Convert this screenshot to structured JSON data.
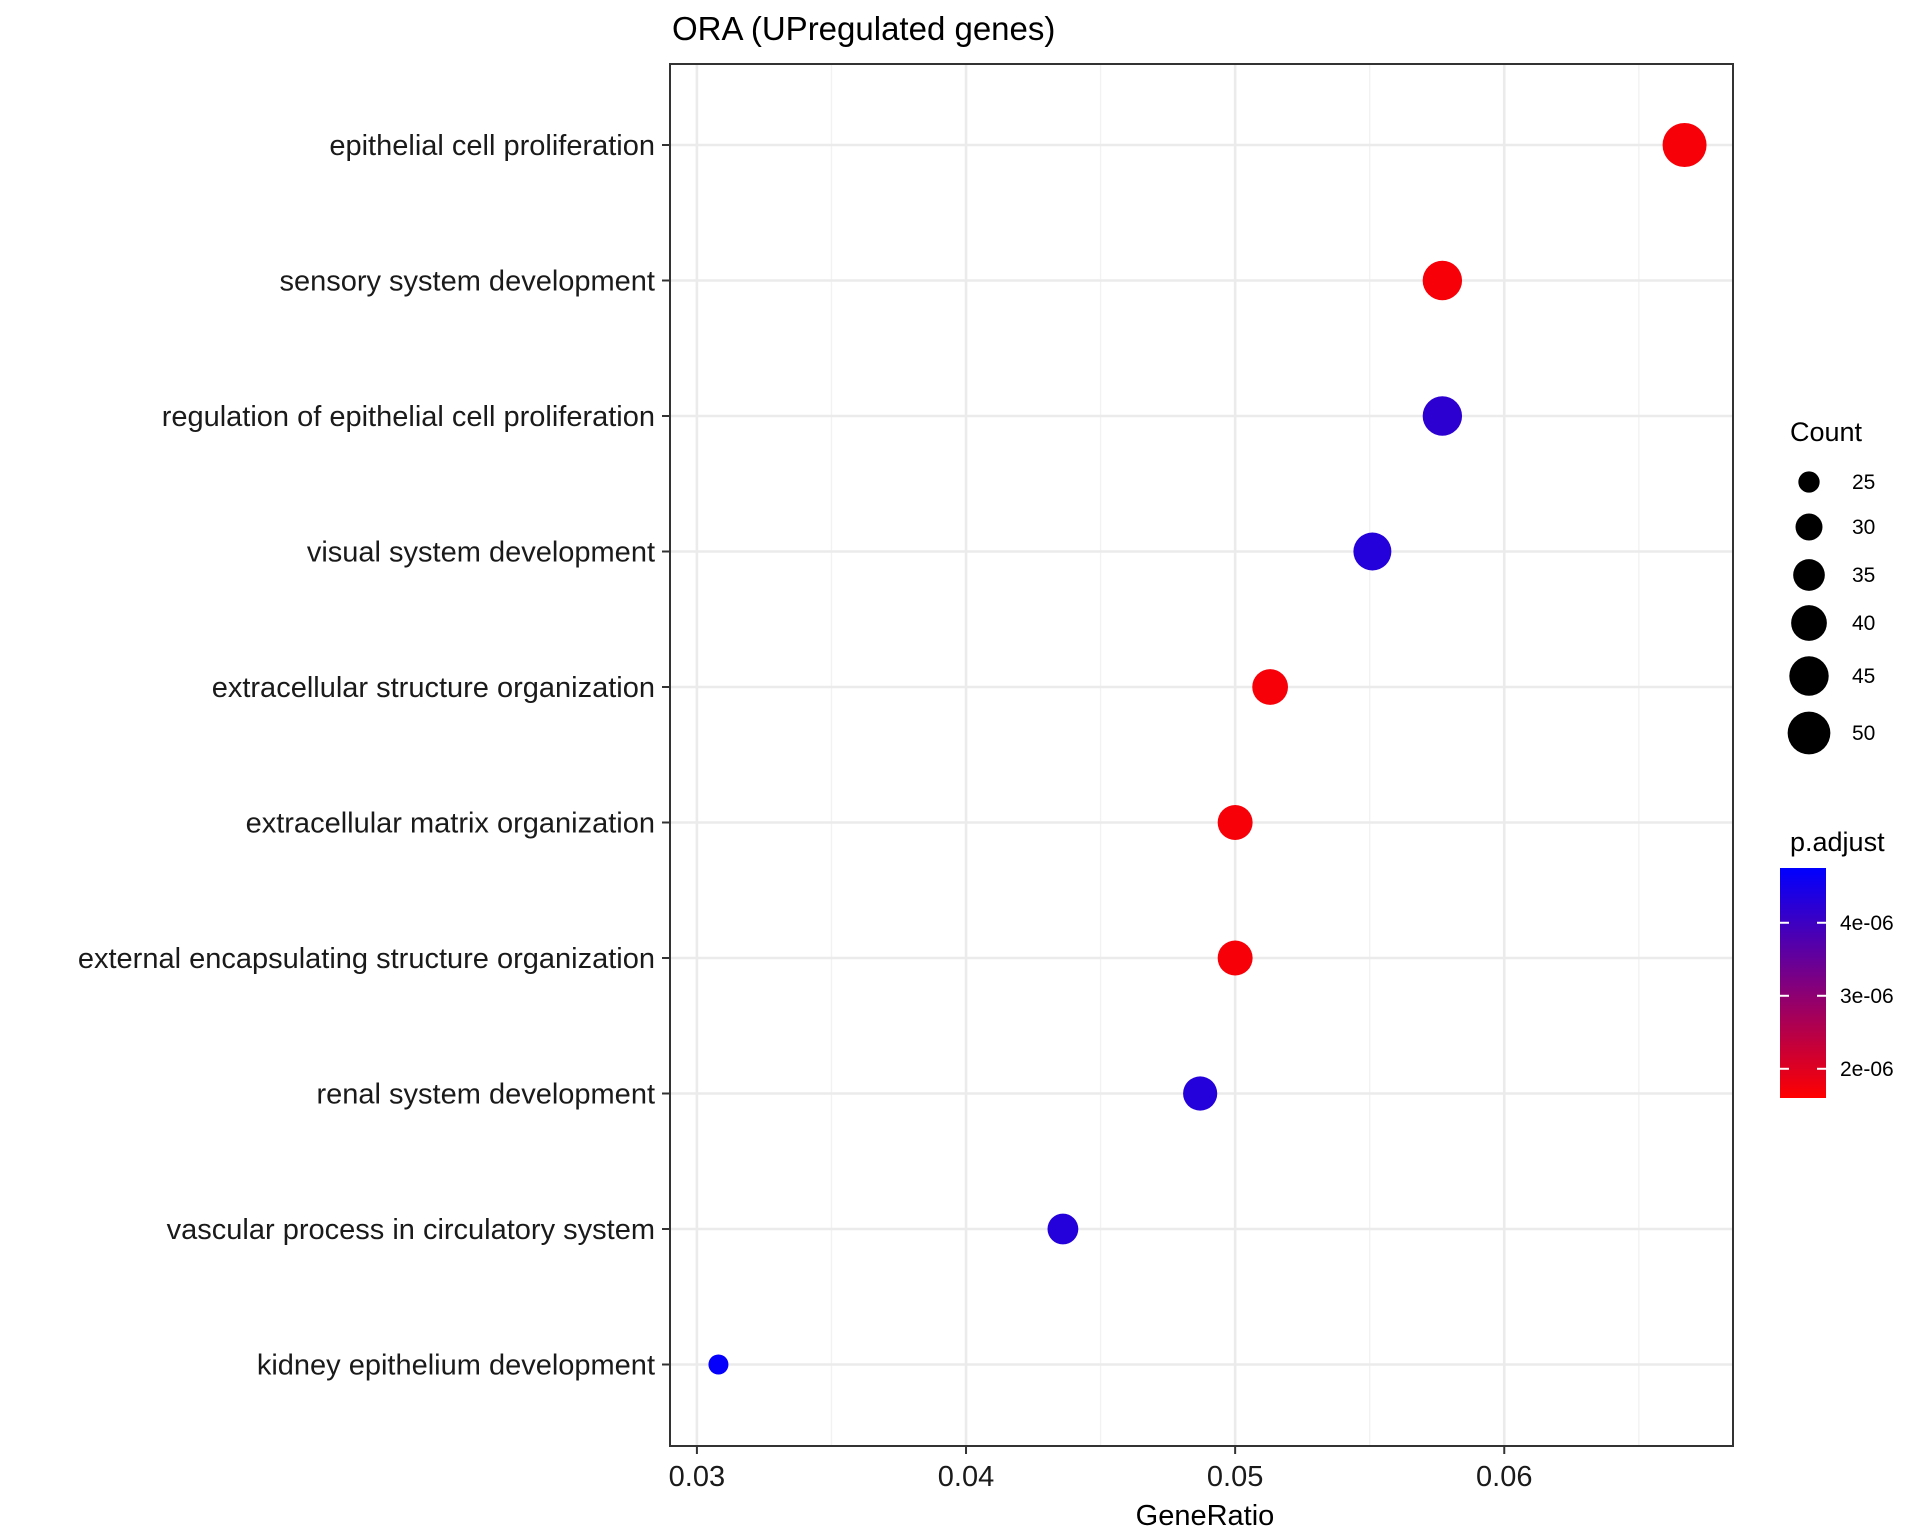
{
  "chart_data": {
    "type": "scatter",
    "title": "ORA (UPregulated genes)",
    "xlabel": "GeneRatio",
    "ylabel": "",
    "xlim": [
      0.029,
      0.0685
    ],
    "xticks": [
      0.03,
      0.04,
      0.05,
      0.06
    ],
    "xtick_labels": [
      "0.03",
      "0.04",
      "0.05",
      "0.06"
    ],
    "grid": true,
    "categories": [
      "epithelial cell proliferation",
      "sensory system development",
      "regulation of epithelial cell proliferation",
      "visual system development",
      "extracellular structure organization",
      "extracellular matrix organization",
      "external encapsulating structure organization",
      "renal system development",
      "vascular process in circulatory system",
      "kidney epithelium development"
    ],
    "gene_ratio": [
      0.0667,
      0.0577,
      0.0577,
      0.0551,
      0.0513,
      0.05,
      0.05,
      0.0487,
      0.0436,
      0.0308
    ],
    "count": [
      52,
      45,
      45,
      43,
      40,
      39,
      39,
      38,
      34,
      24
    ],
    "p_adjust": [
      1.7e-06,
      1.7e-06,
      4.2e-06,
      4.3e-06,
      1.7e-06,
      1.7e-06,
      1.7e-06,
      4.3e-06,
      4.3e-06,
      4.7e-06
    ],
    "size_legend": {
      "title": "Count",
      "values": [
        25,
        30,
        35,
        40,
        45,
        50
      ],
      "labels": [
        "25",
        "30",
        "35",
        "40",
        "45",
        "50"
      ]
    },
    "color_legend": {
      "title": "p.adjust",
      "low_color": "#ff0000",
      "high_color": "#0000ff",
      "range": [
        1.6e-06,
        4.75e-06
      ],
      "breaks": [
        2e-06,
        3e-06,
        4e-06
      ],
      "labels": [
        "2e-06",
        "3e-06",
        "4e-06"
      ]
    },
    "legend_position": "right"
  }
}
